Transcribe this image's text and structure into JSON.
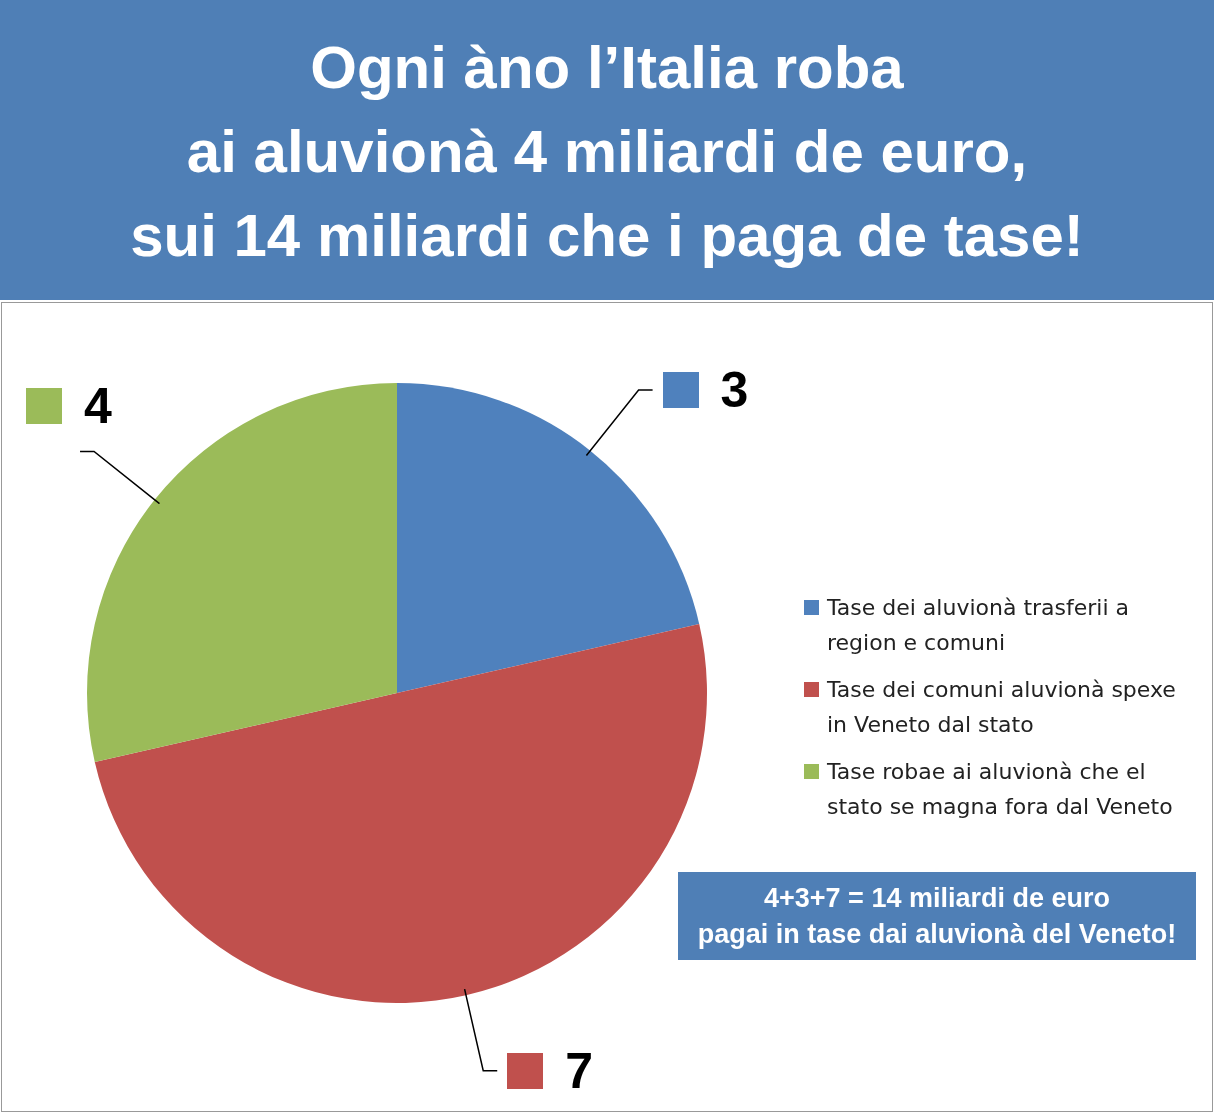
{
  "chart_data": {
    "type": "pie",
    "title": "Ogni àno l’Italia roba\nai aluvionà 4 miliardi de euro,\nsui 14 miliardi che i paga de tase!",
    "categories": [
      "Tase dei aluvionà trasferii a region e comuni",
      "Tase dei comuni aluvionà spexe in Veneto dal stato",
      "Tase robae ai aluvionà che el stato se magna fora dal Veneto"
    ],
    "values": [
      3,
      7,
      4
    ],
    "colors": [
      "#4f81bd",
      "#c0504d",
      "#9bbb59"
    ],
    "data_labels": true,
    "legend": "right",
    "annotations": [
      "4+3+7 = 14 miliardi de euro\npagai in tase dai aluvionà del Veneto!"
    ]
  }
}
